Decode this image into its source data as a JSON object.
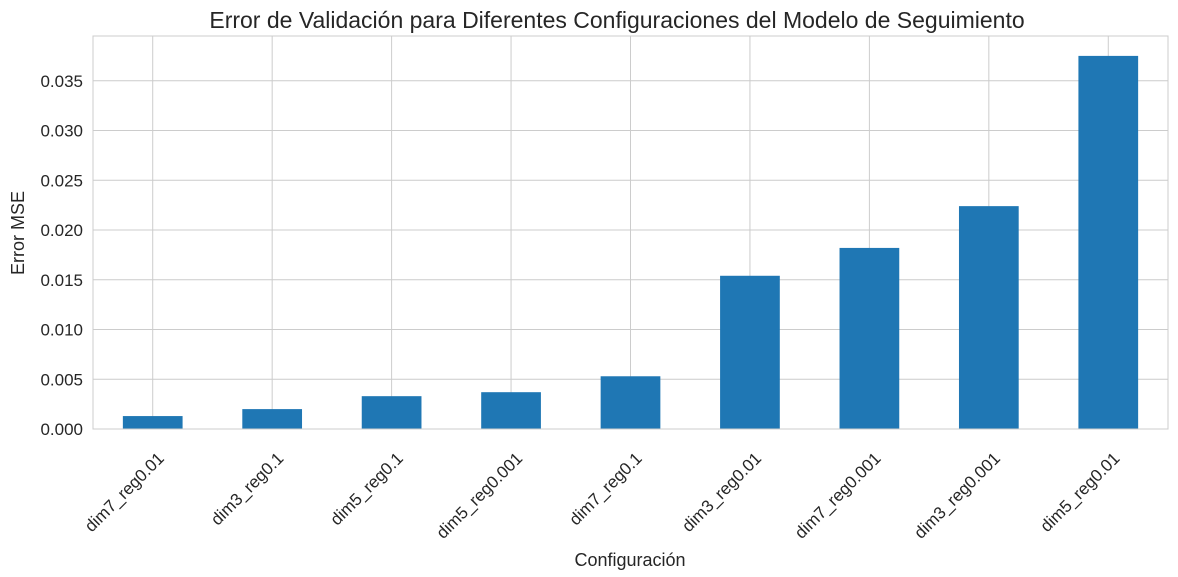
{
  "chart_data": {
    "type": "bar",
    "title": "Error de Validación para Diferentes Configuraciones del Modelo de Seguimiento",
    "xlabel": "Configuración",
    "ylabel": "Error MSE",
    "categories": [
      "dim7_reg0.01",
      "dim3_reg0.1",
      "dim5_reg0.1",
      "dim5_reg0.001",
      "dim7_reg0.1",
      "dim3_reg0.01",
      "dim7_reg0.001",
      "dim3_reg0.001",
      "dim5_reg0.01"
    ],
    "values": [
      0.0013,
      0.002,
      0.0033,
      0.0037,
      0.0053,
      0.0154,
      0.0182,
      0.0224,
      0.0375
    ],
    "ylim": [
      0,
      0.0395
    ],
    "yticks": [
      "0.000",
      "0.005",
      "0.010",
      "0.015",
      "0.020",
      "0.025",
      "0.030",
      "0.035"
    ],
    "ytick_values": [
      0,
      0.005,
      0.01,
      0.015,
      0.02,
      0.025,
      0.03,
      0.035
    ],
    "grid": true,
    "bar_color": "#1f77b4"
  }
}
